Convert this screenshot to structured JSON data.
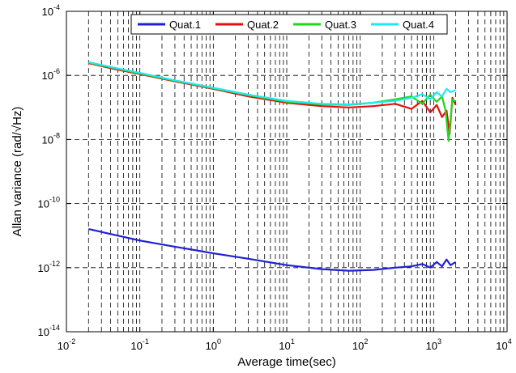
{
  "chart_data": {
    "type": "line",
    "xlabel": "Average time(sec)",
    "ylabel": "Allan variance (rad/√Hz)",
    "xscale": "log",
    "yscale": "log",
    "xlim": [
      0.01,
      10000
    ],
    "ylim": [
      1e-14,
      0.0001
    ],
    "grid": "on (dashed, major and minor on x)",
    "legend_position": "top",
    "x_ticks": [
      {
        "base": "10",
        "exp": "-2",
        "value": 0.01
      },
      {
        "base": "10",
        "exp": "-1",
        "value": 0.1
      },
      {
        "base": "10",
        "exp": "0",
        "value": 1
      },
      {
        "base": "10",
        "exp": "1",
        "value": 10
      },
      {
        "base": "10",
        "exp": "2",
        "value": 100
      },
      {
        "base": "10",
        "exp": "3",
        "value": 1000
      },
      {
        "base": "10",
        "exp": "4",
        "value": 10000
      }
    ],
    "y_ticks": [
      {
        "base": "10",
        "exp": "-14",
        "value": 1e-14
      },
      {
        "base": "10",
        "exp": "-12",
        "value": 1e-12
      },
      {
        "base": "10",
        "exp": "-10",
        "value": 1e-10
      },
      {
        "base": "10",
        "exp": "-8",
        "value": 1e-08
      },
      {
        "base": "10",
        "exp": "-6",
        "value": 1e-06
      },
      {
        "base": "10",
        "exp": "-4",
        "value": 0.0001
      }
    ],
    "series": [
      {
        "name": "Quat.1",
        "color": "#1f1fd6",
        "points": [
          [
            0.02,
            1.6e-11
          ],
          [
            0.05,
            1e-11
          ],
          [
            0.1,
            7e-12
          ],
          [
            0.3,
            4.5e-12
          ],
          [
            1,
            2.8e-12
          ],
          [
            3,
            1.9e-12
          ],
          [
            10,
            1.2e-12
          ],
          [
            30,
            9e-13
          ],
          [
            70,
            8e-13
          ],
          [
            150,
            8.5e-13
          ],
          [
            300,
            1e-12
          ],
          [
            500,
            1.1e-12
          ],
          [
            700,
            1.3e-12
          ],
          [
            900,
            1e-12
          ],
          [
            1100,
            1.5e-12
          ],
          [
            1300,
            1.1e-12
          ],
          [
            1500,
            1.8e-12
          ],
          [
            1700,
            1.2e-12
          ],
          [
            2000,
            1.5e-12
          ]
        ]
      },
      {
        "name": "Quat.2",
        "color": "#e01010",
        "points": [
          [
            0.02,
            2.4e-06
          ],
          [
            0.05,
            1.5e-06
          ],
          [
            0.1,
            1.1e-06
          ],
          [
            0.3,
            6.5e-07
          ],
          [
            1,
            3.8e-07
          ],
          [
            3,
            2.2e-07
          ],
          [
            10,
            1.4e-07
          ],
          [
            30,
            1.1e-07
          ],
          [
            70,
            1e-07
          ],
          [
            150,
            1.1e-07
          ],
          [
            300,
            1.3e-07
          ],
          [
            500,
            9e-08
          ],
          [
            700,
            1.6e-07
          ],
          [
            900,
            7e-08
          ],
          [
            1100,
            1.2e-07
          ],
          [
            1300,
            5e-08
          ],
          [
            1500,
            8e-08
          ],
          [
            1650,
            1.5e-08
          ],
          [
            1800,
            2e-07
          ],
          [
            2000,
            1.2e-07
          ]
        ]
      },
      {
        "name": "Quat.3",
        "color": "#1ed81e",
        "points": [
          [
            0.02,
            2.5e-06
          ],
          [
            0.05,
            1.6e-06
          ],
          [
            0.1,
            1.15e-06
          ],
          [
            0.3,
            6.8e-07
          ],
          [
            1,
            4e-07
          ],
          [
            3,
            2.4e-07
          ],
          [
            10,
            1.5e-07
          ],
          [
            30,
            1.25e-07
          ],
          [
            70,
            1.2e-07
          ],
          [
            150,
            1.4e-07
          ],
          [
            300,
            1.8e-07
          ],
          [
            500,
            2.2e-07
          ],
          [
            700,
            1.3e-07
          ],
          [
            900,
            2.5e-07
          ],
          [
            1100,
            1.5e-07
          ],
          [
            1300,
            2.2e-07
          ],
          [
            1450,
            8e-08
          ],
          [
            1600,
            9e-09
          ],
          [
            1800,
            1.8e-07
          ],
          [
            2000,
            1.5e-07
          ]
        ]
      },
      {
        "name": "Quat.4",
        "color": "#20e8f0",
        "points": [
          [
            0.02,
            2.6e-06
          ],
          [
            0.05,
            1.65e-06
          ],
          [
            0.1,
            1.2e-06
          ],
          [
            0.3,
            7e-07
          ],
          [
            1,
            4.1e-07
          ],
          [
            3,
            2.5e-07
          ],
          [
            10,
            1.6e-07
          ],
          [
            30,
            1.3e-07
          ],
          [
            70,
            1.25e-07
          ],
          [
            150,
            1.4e-07
          ],
          [
            300,
            1.6e-07
          ],
          [
            500,
            2e-07
          ],
          [
            700,
            2.6e-07
          ],
          [
            900,
            1.8e-07
          ],
          [
            1100,
            3e-07
          ],
          [
            1300,
            2.2e-07
          ],
          [
            1500,
            3.8e-07
          ],
          [
            1700,
            3e-07
          ],
          [
            2000,
            3.5e-07
          ]
        ]
      }
    ]
  }
}
